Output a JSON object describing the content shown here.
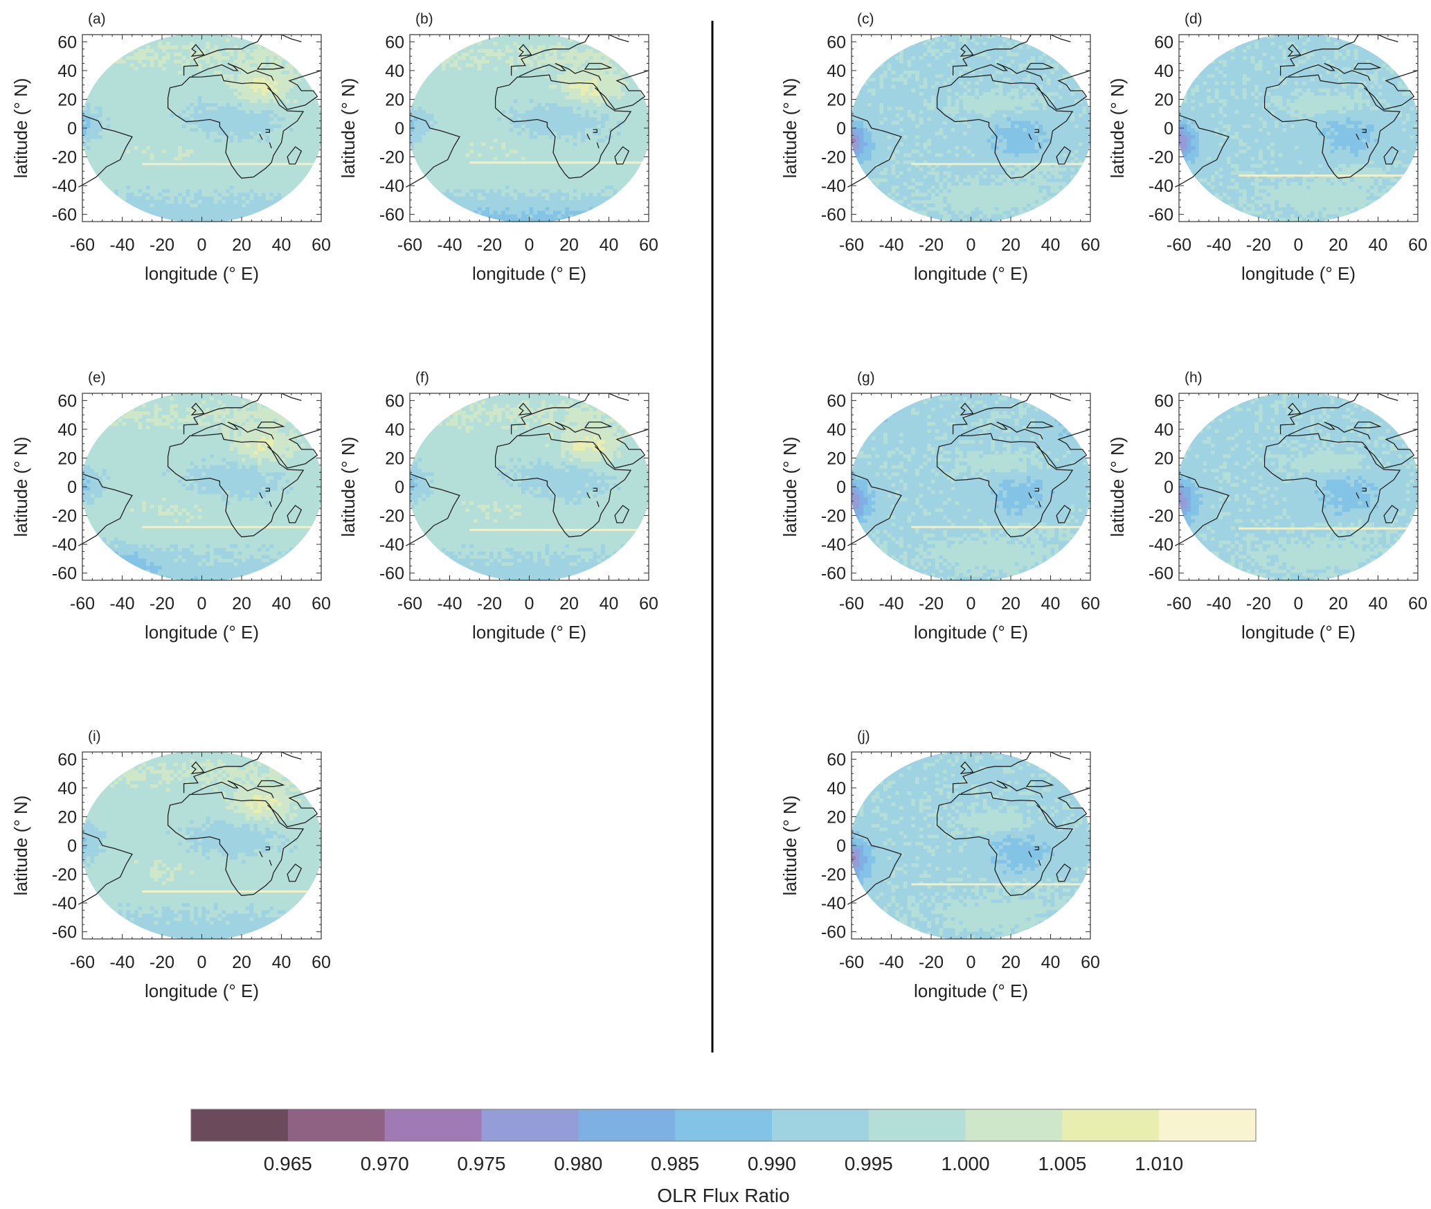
{
  "chart_data": {
    "type": "heatmap",
    "panel_labels": [
      "(a)",
      "(b)",
      "(c)",
      "(d)",
      "(e)",
      "(f)",
      "(g)",
      "(h)",
      "(i)",
      "(j)"
    ],
    "x_axis": {
      "label": "longitude (° E)",
      "range": [
        -60,
        60
      ],
      "ticks": [
        "-60",
        "-40",
        "-20",
        "0",
        "20",
        "40",
        "60"
      ]
    },
    "y_axis": {
      "label": "latitude (° N)",
      "range": [
        -65,
        65
      ],
      "ticks": [
        "60",
        "40",
        "20",
        "0",
        "-20",
        "-40",
        "-60"
      ]
    },
    "colorbar": {
      "label": "OLR Flux Ratio",
      "orientation": "horizontal",
      "placement": "bottom",
      "ticks": [
        "0.965",
        "0.970",
        "0.975",
        "0.980",
        "0.985",
        "0.990",
        "0.995",
        "1.000",
        "1.005",
        "1.010"
      ],
      "bins": [
        {
          "range": [
            0.96,
            0.965
          ],
          "color": "#6b4a5c"
        },
        {
          "range": [
            0.965,
            0.97
          ],
          "color": "#8f6283"
        },
        {
          "range": [
            0.97,
            0.975
          ],
          "color": "#a07ab4"
        },
        {
          "range": [
            0.975,
            0.98
          ],
          "color": "#949dd8"
        },
        {
          "range": [
            0.98,
            0.985
          ],
          "color": "#7fb0e3"
        },
        {
          "range": [
            0.985,
            0.99
          ],
          "color": "#83c3e6"
        },
        {
          "range": [
            0.99,
            0.995
          ],
          "color": "#9fd3e2"
        },
        {
          "range": [
            0.995,
            1.0
          ],
          "color": "#b4dfd8"
        },
        {
          "range": [
            1.0,
            1.005
          ],
          "color": "#cfe7c9"
        },
        {
          "range": [
            1.005,
            1.01
          ],
          "color": "#e8edb0"
        },
        {
          "range": [
            1.01,
            1.015
          ],
          "color": "#f8f4cf"
        }
      ]
    },
    "field_description_levels": {
      "note_free": true
    }
  }
}
